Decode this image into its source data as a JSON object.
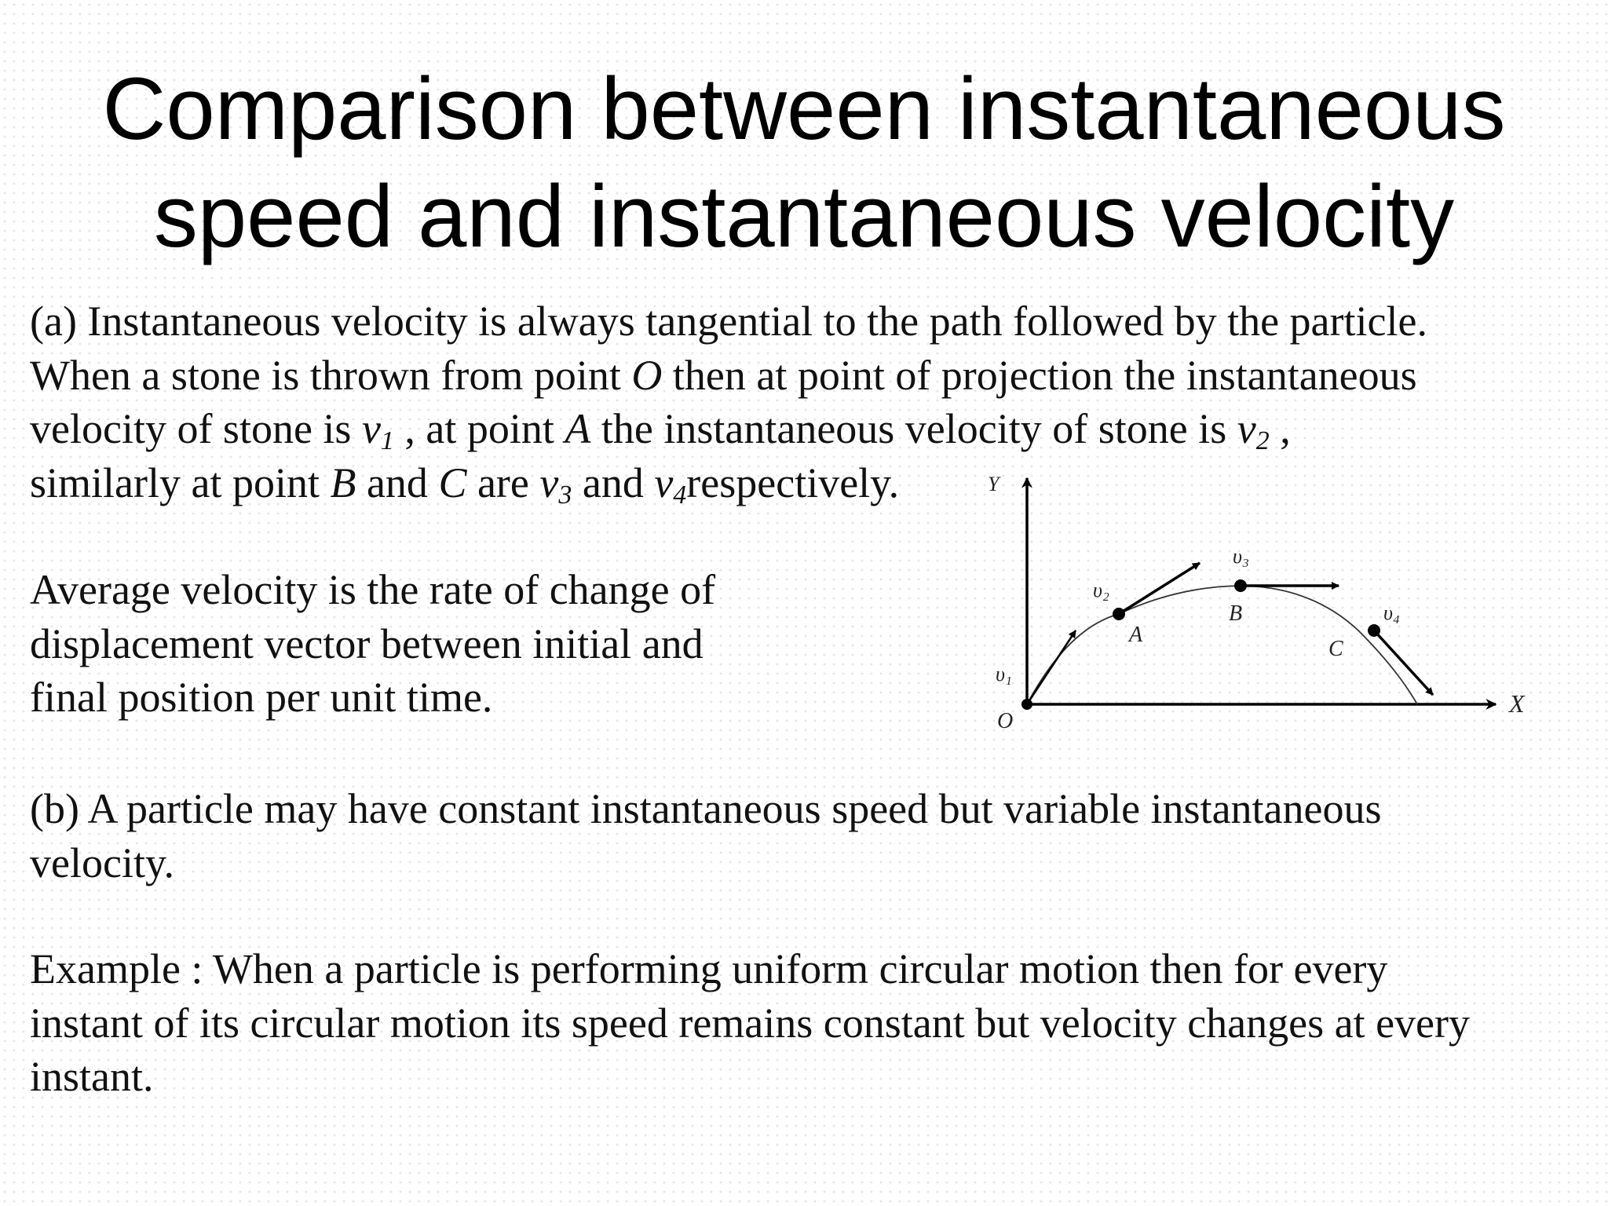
{
  "title": {
    "line1": "Comparison between instantaneous",
    "line2": "speed and instantaneous velocity"
  },
  "para_a": {
    "l1": "(a) Instantaneous velocity is always tangential to the path followed by the particle.",
    "l2_p1": "When a stone is thrown from point ",
    "l2_O": "O",
    "l2_p2": " then at point of projection the instantaneous",
    "l3_p1": "velocity of stone is  ",
    "l3_v": "v",
    "l3_s1": "1",
    "l3_p2": " , at point ",
    "l3_A": "A",
    "l3_p3": " the instantaneous velocity of stone is ",
    "l3_v2": "v",
    "l3_s2": "2",
    "l3_p4": " ,",
    "l4_p1": "similarly at point ",
    "l4_B": "B",
    "l4_p2": " and ",
    "l4_C": "C",
    "l4_p3": " are ",
    "l4_v3": "v",
    "l4_s3": "3",
    "l4_p4": " and ",
    "l4_v4": "v",
    "l4_s4": "4",
    "l4_p5": "respectively."
  },
  "para_avg": {
    "l1": "Average velocity is the rate of change of",
    "l2": "displacement vector between initial and",
    "l3": "final position per unit time."
  },
  "para_b": {
    "l1": "(b) A particle may have constant instantaneous speed but variable instantaneous",
    "l2": "velocity."
  },
  "para_ex": {
    "l1": "Example : When a particle is performing uniform circular motion then for every",
    "l2": "instant of its circular motion its speed remains constant but velocity changes at every",
    "l3": "instant."
  },
  "diagram": {
    "y_axis": "Y",
    "x_axis": "X",
    "origin": "O",
    "point_a": "A",
    "point_b": "B",
    "point_c": "C",
    "v1": "υ₁",
    "v2": "υ₂",
    "v3": "υ₃",
    "v4": "υ₄",
    "colors": {
      "ink": "#000000"
    }
  }
}
